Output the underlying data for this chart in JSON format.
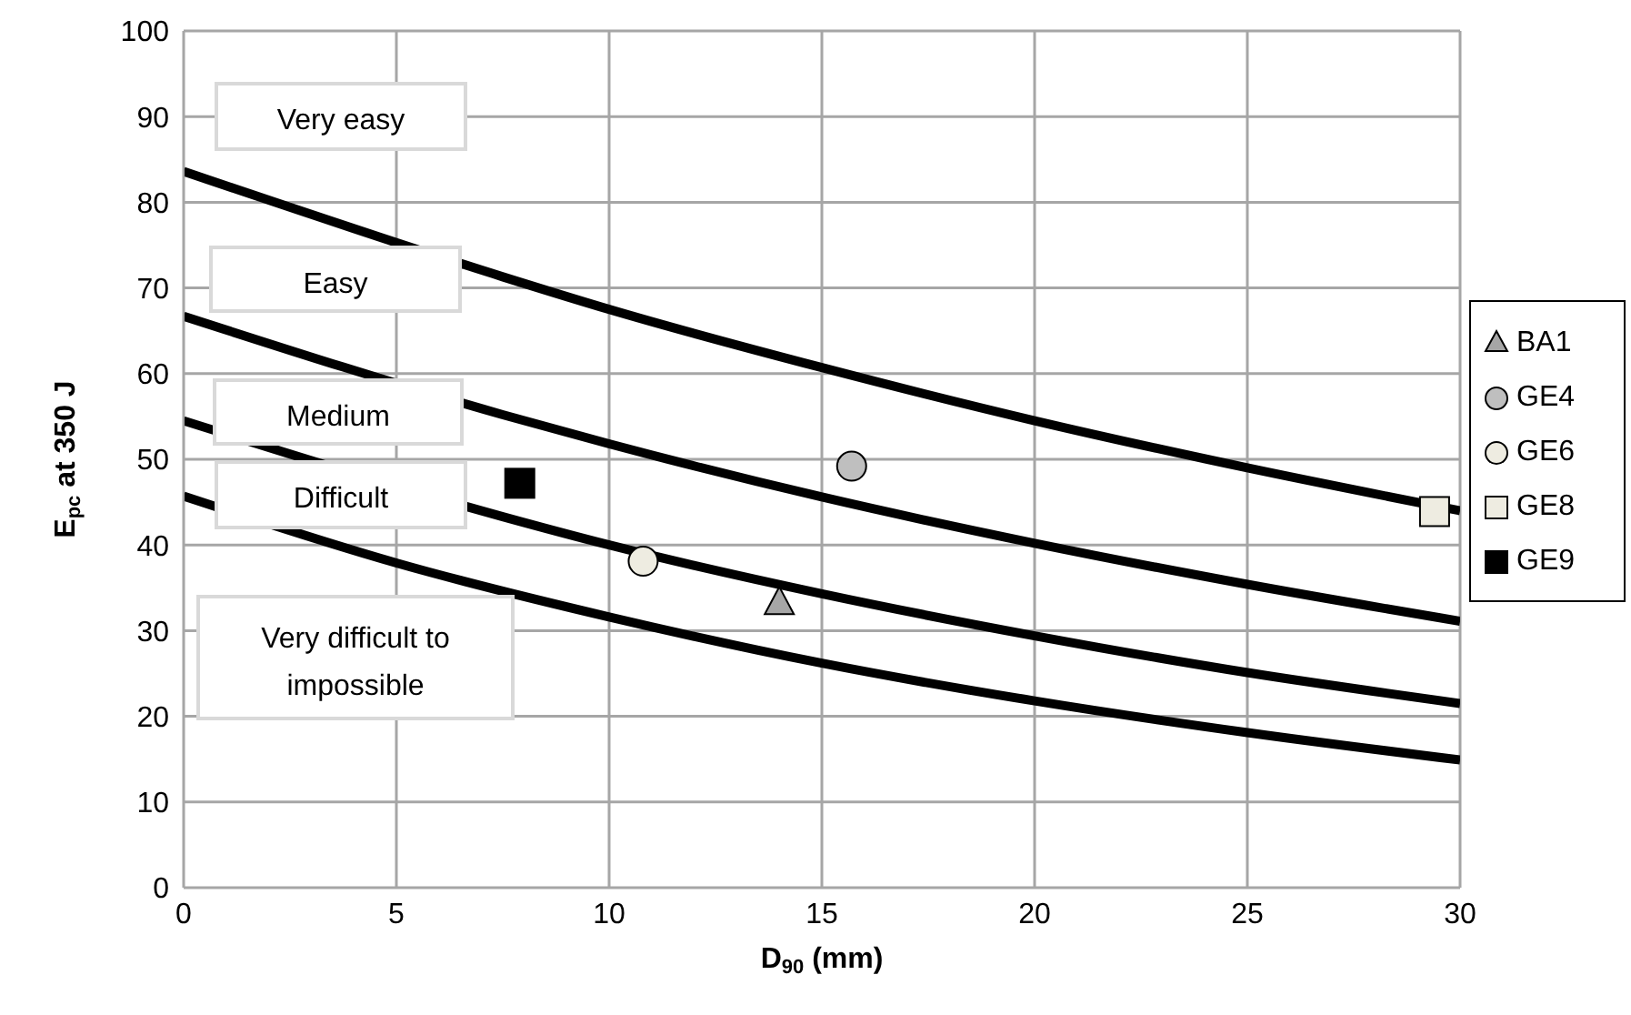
{
  "chart_data": {
    "type": "scatter",
    "xlabel": "D$_{90}$ (mm)",
    "ylabel": "E$_{pc}$ at 350 J",
    "xlim": [
      0,
      30
    ],
    "xticks": [
      0,
      5,
      10,
      15,
      20,
      25,
      30
    ],
    "ylim": [
      0,
      100
    ],
    "yticks": [
      0,
      10,
      20,
      30,
      40,
      50,
      60,
      70,
      80,
      90,
      100
    ],
    "grid": true,
    "legend": "right",
    "annotations": [
      "Very easy",
      "Easy",
      "Medium",
      "Difficult",
      "Very difficult to impossible"
    ],
    "series": [
      {
        "type": "line",
        "color": "#000000",
        "marker": "none",
        "x": [
          0,
          7.5,
          10,
          15,
          20,
          25,
          30
        ],
        "values": [
          83.6,
          71.3,
          67.5,
          60.7,
          54.5,
          49.0,
          44.0
        ]
      },
      {
        "type": "line",
        "color": "#000000",
        "marker": "none",
        "x": [
          0,
          7.5,
          10,
          15,
          20,
          25,
          30
        ],
        "values": [
          66.7,
          55.2,
          51.8,
          45.6,
          40.2,
          35.4,
          31.1
        ]
      },
      {
        "type": "line",
        "color": "#000000",
        "marker": "none",
        "x": [
          0,
          7.5,
          10,
          15,
          20,
          25,
          30
        ],
        "values": [
          54.5,
          43.3,
          40.0,
          34.3,
          29.4,
          25.1,
          21.5
        ]
      },
      {
        "type": "line",
        "color": "#000000",
        "marker": "none",
        "x": [
          0,
          5,
          10,
          15,
          20,
          25,
          30
        ],
        "values": [
          45.7,
          37.9,
          31.6,
          26.2,
          21.8,
          18.1,
          14.9
        ]
      },
      {
        "name": "BA1",
        "marker": "triangle",
        "color": "#a6a6a6",
        "x": [
          14.0
        ],
        "values": [
          33.2
        ]
      },
      {
        "name": "GE4",
        "marker": "circle",
        "color": "#bfbfbf",
        "x": [
          15.7
        ],
        "values": [
          49.2
        ]
      },
      {
        "name": "GE6",
        "marker": "circle",
        "color": "#eeece1",
        "x": [
          10.8
        ],
        "values": [
          38.1
        ]
      },
      {
        "name": "GE8",
        "marker": "square",
        "color": "#eeece1",
        "x": [
          29.4
        ],
        "values": [
          43.9
        ]
      },
      {
        "name": "GE9",
        "marker": "square",
        "color": "#000000",
        "x": [
          7.9
        ],
        "values": [
          47.2
        ]
      }
    ]
  }
}
